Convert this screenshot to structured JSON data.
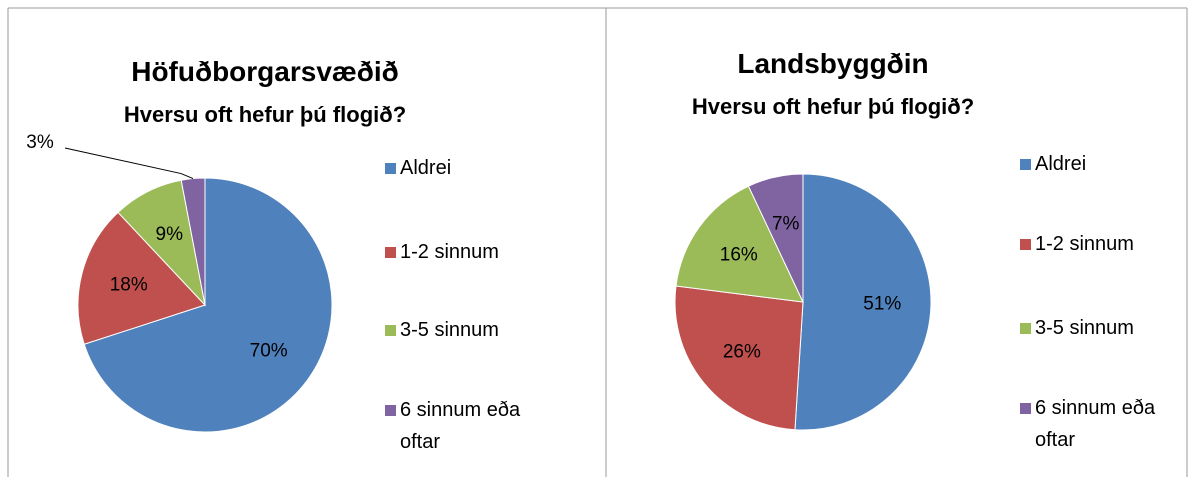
{
  "chart_data": [
    {
      "type": "pie",
      "title": "Höfuðborgarsvæðið",
      "subtitle": "Hversu oft hefur þú flogið?",
      "categories": [
        "Aldrei",
        "1-2 sinnum",
        "3-5 sinnum",
        "6 sinnum eða oftar"
      ],
      "values": [
        70,
        18,
        9,
        3
      ],
      "value_labels": [
        "70%",
        "18%",
        "9%",
        "3%"
      ],
      "colors": [
        "#4f81bd",
        "#c0504d",
        "#9bbb59",
        "#8064a2"
      ],
      "legend": "right"
    },
    {
      "type": "pie",
      "title": "Landsbyggðin",
      "subtitle": "Hversu oft hefur þú flogið?",
      "categories": [
        "Aldrei",
        "1-2 sinnum",
        "3-5 sinnum",
        "6 sinnum eða oftar"
      ],
      "values": [
        51,
        26,
        16,
        7
      ],
      "value_labels": [
        "51%",
        "26%",
        "16%",
        "7%"
      ],
      "colors": [
        "#4f81bd",
        "#c0504d",
        "#9bbb59",
        "#8064a2"
      ],
      "legend": "right"
    }
  ]
}
